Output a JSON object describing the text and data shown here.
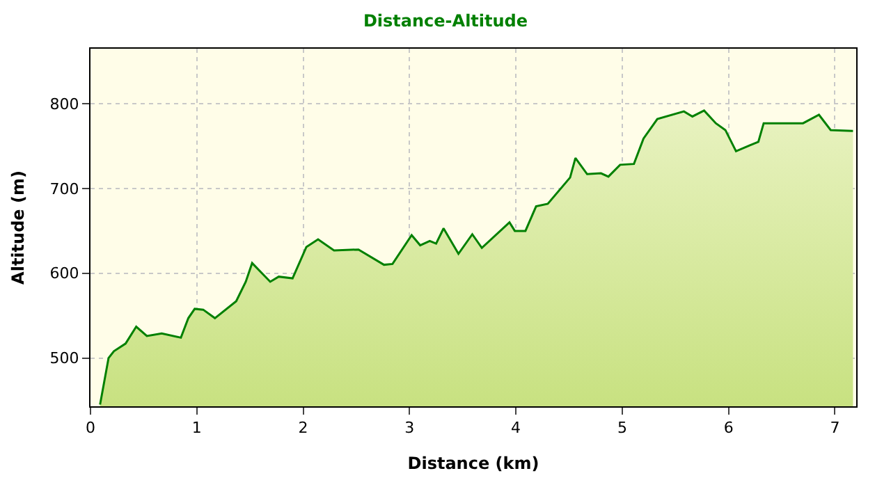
{
  "chart_data": {
    "type": "area",
    "title": "Distance-Altitude",
    "xlabel": "Distance (km)",
    "ylabel": "Altitude (m)",
    "series": [
      {
        "color": "#008000",
        "x": [
          0.09,
          0.17,
          0.22,
          0.33,
          0.43,
          0.53,
          0.67,
          0.85,
          0.92,
          0.98,
          1.06,
          1.17,
          1.37,
          1.46,
          1.52,
          1.69,
          1.77,
          1.9,
          2.03,
          2.14,
          2.29,
          2.52,
          2.76,
          2.84,
          3.02,
          3.1,
          3.19,
          3.25,
          3.32,
          3.46,
          3.59,
          3.68,
          3.94,
          3.99,
          4.09,
          4.19,
          4.3,
          4.51,
          4.56,
          4.67,
          4.8,
          4.87,
          4.98,
          5.11,
          5.2,
          5.33,
          5.58,
          5.66,
          5.77,
          5.88,
          5.97,
          6.07,
          6.2,
          6.28,
          6.33,
          6.7,
          6.85,
          6.96,
          7.17
        ],
        "values": [
          445,
          500,
          508,
          517,
          537,
          526,
          529,
          524,
          547,
          558,
          557,
          547,
          567,
          590,
          612,
          590,
          596,
          594,
          631,
          640,
          627,
          628,
          610,
          611,
          645,
          633,
          638,
          635,
          653,
          623,
          646,
          630,
          660,
          650,
          650,
          679,
          682,
          713,
          736,
          717,
          718,
          714,
          728,
          729,
          759,
          782,
          791,
          785,
          792,
          777,
          769,
          744,
          751,
          755,
          777,
          777,
          787,
          769,
          768
        ]
      }
    ],
    "xlim": [
      0,
      7.2
    ],
    "ylim": [
      443,
      865
    ],
    "xticks": [
      0,
      1,
      2,
      3,
      4,
      5,
      6,
      7
    ],
    "yticks": [
      500,
      600,
      700,
      800
    ],
    "grid": true
  }
}
